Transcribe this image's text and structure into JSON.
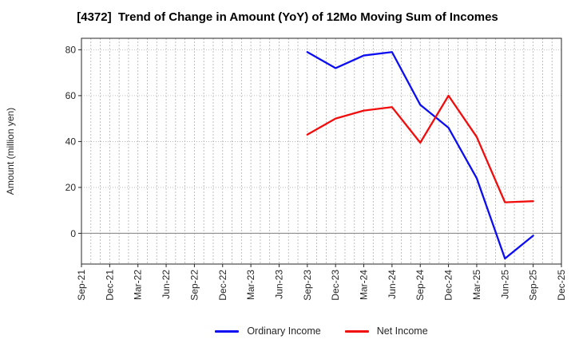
{
  "chart_data": {
    "type": "line",
    "title": "[4372]  Trend of Change in Amount (YoY) of 12Mo Moving Sum of Incomes",
    "ylabel": "Amount (million yen)",
    "xlabel": "",
    "x_labels": [
      "Sep-21",
      "Dec-21",
      "Mar-22",
      "Jun-22",
      "Sep-22",
      "Dec-22",
      "Mar-23",
      "Jun-23",
      "Sep-23",
      "Dec-23",
      "Mar-24",
      "Jun-24",
      "Sep-24",
      "Dec-24",
      "Mar-25",
      "Jun-25",
      "Sep-25",
      "Dec-25"
    ],
    "months_per_tick": 3,
    "yticks": [
      0,
      20,
      40,
      60,
      80
    ],
    "ylim": [
      -13.4,
      85
    ],
    "grid": true,
    "zero_line": true,
    "legend_position": "bottom-center",
    "series": [
      {
        "name": "Ordinary Income",
        "color": "#0d0df2",
        "start_label": "Sep-23",
        "start_index": 8,
        "x": [
          "Sep-23",
          "Dec-23",
          "Mar-24",
          "Jun-24",
          "Sep-24",
          "Dec-24",
          "Mar-25",
          "Jun-25",
          "Sep-25"
        ],
        "values": [
          79,
          72,
          77.5,
          79,
          56,
          46,
          24,
          -11,
          -1
        ]
      },
      {
        "name": "Net Income",
        "color": "#f20d0d",
        "start_label": "Sep-23",
        "start_index": 8,
        "x": [
          "Sep-23",
          "Dec-23",
          "Mar-24",
          "Jun-24",
          "Sep-24",
          "Dec-24",
          "Mar-25",
          "Jun-25",
          "Sep-25"
        ],
        "values": [
          43,
          50,
          53.5,
          55,
          39.5,
          60,
          42,
          13.5,
          14
        ]
      }
    ],
    "colors": {
      "grid": "#b0b0b0",
      "zero_line": "#8c8c8c",
      "spine": "#262626",
      "tick_text": "#262626",
      "title_text": "#000000"
    }
  }
}
